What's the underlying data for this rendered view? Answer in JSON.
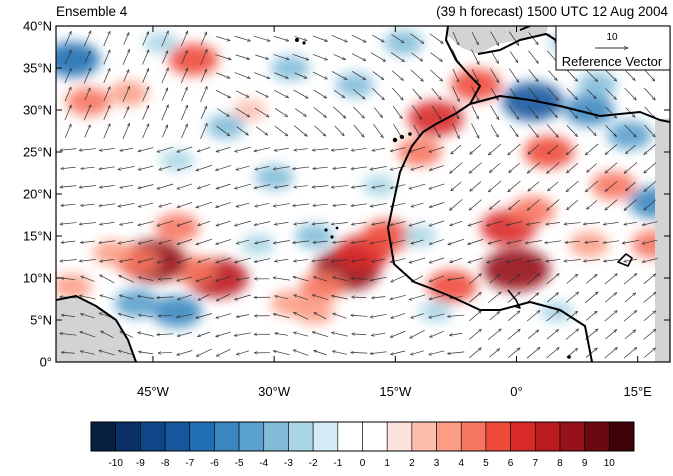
{
  "title_left": "Ensemble 4",
  "title_right": "(39 h forecast) 1500 UTC 12 Aug 2004",
  "map": {
    "lon_range": [
      -57,
      19
    ],
    "lat_range": [
      0,
      40
    ],
    "lat_ticks": [
      {
        "value": 40,
        "label": "40°N"
      },
      {
        "value": 35,
        "label": "35°N"
      },
      {
        "value": 30,
        "label": "30°N"
      },
      {
        "value": 25,
        "label": "25°N"
      },
      {
        "value": 20,
        "label": "20°N"
      },
      {
        "value": 15,
        "label": "15°N"
      },
      {
        "value": 10,
        "label": "10°N"
      },
      {
        "value": 5,
        "label": "5°N"
      },
      {
        "value": 0,
        "label": "0°"
      }
    ],
    "lon_ticks": [
      {
        "value": -45,
        "label": "45°W"
      },
      {
        "value": -30,
        "label": "30°W"
      },
      {
        "value": -15,
        "label": "15°W"
      },
      {
        "value": 0,
        "label": "0°"
      },
      {
        "value": 15,
        "label": "15°E"
      }
    ],
    "land_color": "#d3d3d3",
    "coast_color": "#000000",
    "vector_color": "#333333"
  },
  "reference_vector": {
    "value": "10",
    "label": "Reference Vector"
  },
  "colorbar": {
    "labels": [
      "-10",
      "-9",
      "-8",
      "-7",
      "-6",
      "-5",
      "-4",
      "-3",
      "-2",
      "-1",
      "0",
      "1",
      "2",
      "3",
      "4",
      "5",
      "6",
      "7",
      "8",
      "9",
      "10"
    ],
    "colors": [
      "#08203f",
      "#0a3166",
      "#0e4687",
      "#15589f",
      "#1f6fb3",
      "#3a87c0",
      "#5aa0cc",
      "#82bcd9",
      "#a9d5e4",
      "#d4ecf5",
      "#ffffff",
      "#ffffff",
      "#fde1dd",
      "#fcbfae",
      "#fb9d85",
      "#f7765f",
      "#ee4a3a",
      "#d92a28",
      "#bb1b1f",
      "#96121a",
      "#6a0a10",
      "#3d0306"
    ]
  },
  "anomalies": [
    {
      "lon": -21,
      "lat": 11,
      "v": 8
    },
    {
      "lon": -19,
      "lat": 13,
      "v": 6
    },
    {
      "lon": -16,
      "lat": 15,
      "v": 5
    },
    {
      "lon": -24,
      "lat": 9,
      "v": 4
    },
    {
      "lon": -28,
      "lat": 7,
      "v": 3
    },
    {
      "lon": -37,
      "lat": 10,
      "v": 7
    },
    {
      "lon": -40,
      "lat": 11,
      "v": 4
    },
    {
      "lon": -45,
      "lat": 12,
      "v": 8
    },
    {
      "lon": -47,
      "lat": 12,
      "v": 4
    },
    {
      "lon": -42,
      "lat": 16,
      "v": 4
    },
    {
      "lon": -50,
      "lat": 13,
      "v": 3
    },
    {
      "lon": -10,
      "lat": 29,
      "v": 6
    },
    {
      "lon": -5,
      "lat": 33,
      "v": 5
    },
    {
      "lon": -12,
      "lat": 25,
      "v": 4
    },
    {
      "lon": -8,
      "lat": 9,
      "v": 5
    },
    {
      "lon": 0,
      "lat": 11,
      "v": 8
    },
    {
      "lon": -1,
      "lat": 16,
      "v": 6
    },
    {
      "lon": 2,
      "lat": 18,
      "v": 4
    },
    {
      "lon": 4,
      "lat": 25,
      "v": 5
    },
    {
      "lon": 12,
      "lat": 21,
      "v": 4
    },
    {
      "lon": -40,
      "lat": 36,
      "v": 5
    },
    {
      "lon": -53,
      "lat": 31,
      "v": 4
    },
    {
      "lon": -48,
      "lat": 32,
      "v": 3
    },
    {
      "lon": 9,
      "lat": 14,
      "v": 3
    },
    {
      "lon": 17,
      "lat": 14,
      "v": 4
    },
    {
      "lon": -55,
      "lat": 9,
      "v": 3
    },
    {
      "lon": -25,
      "lat": 6,
      "v": 3
    },
    {
      "lon": -33,
      "lat": 30,
      "v": 2
    },
    {
      "lon": -55,
      "lat": 36,
      "v": -6
    },
    {
      "lon": 2,
      "lat": 31,
      "v": -7
    },
    {
      "lon": 9,
      "lat": 30,
      "v": -5
    },
    {
      "lon": 14,
      "lat": 27,
      "v": -4
    },
    {
      "lon": 17,
      "lat": 19,
      "v": -5
    },
    {
      "lon": -42,
      "lat": 6,
      "v": -5
    },
    {
      "lon": -47,
      "lat": 7,
      "v": -4
    },
    {
      "lon": -52,
      "lat": 3,
      "v": -3
    },
    {
      "lon": -28,
      "lat": 35,
      "v": -3
    },
    {
      "lon": -20,
      "lat": 33,
      "v": -3
    },
    {
      "lon": -36,
      "lat": 28,
      "v": -3
    },
    {
      "lon": -42,
      "lat": 24,
      "v": -2
    },
    {
      "lon": -30,
      "lat": 22,
      "v": -3
    },
    {
      "lon": -25,
      "lat": 15,
      "v": -3
    },
    {
      "lon": -32,
      "lat": 14,
      "v": -2
    },
    {
      "lon": -17,
      "lat": 21,
      "v": -2
    },
    {
      "lon": -12,
      "lat": 15,
      "v": -2
    },
    {
      "lon": -10,
      "lat": 6,
      "v": -2
    },
    {
      "lon": 5,
      "lat": 6,
      "v": -2
    },
    {
      "lon": 10,
      "lat": 33,
      "v": -3
    },
    {
      "lon": -14,
      "lat": 38,
      "v": -3
    },
    {
      "lon": -44,
      "lat": 38,
      "v": -2
    },
    {
      "lon": 6,
      "lat": 38,
      "v": -2
    }
  ]
}
